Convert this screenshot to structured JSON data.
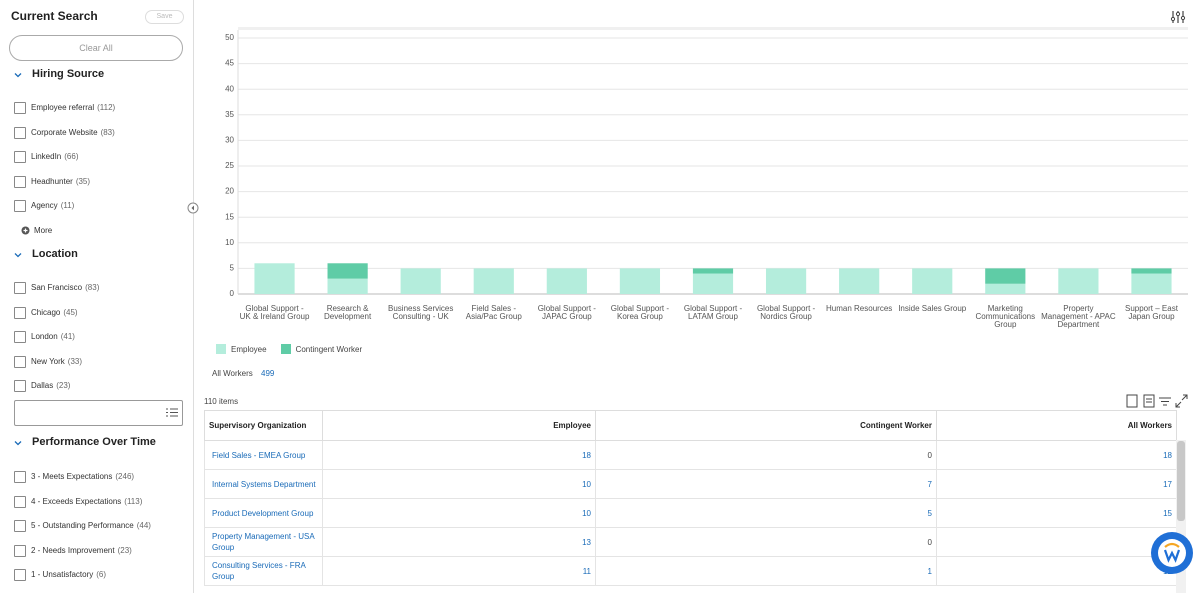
{
  "sidebar": {
    "title": "Current Search",
    "save": "Save",
    "clear_all": "Clear All",
    "sections": [
      {
        "heading": "Hiring Source",
        "items": [
          {
            "label": "Employee referral",
            "count": "(112)"
          },
          {
            "label": "Corporate Website",
            "count": "(83)"
          },
          {
            "label": "LinkedIn",
            "count": "(66)"
          },
          {
            "label": "Headhunter",
            "count": "(35)"
          },
          {
            "label": "Agency",
            "count": "(11)"
          }
        ],
        "more": "More"
      },
      {
        "heading": "Location",
        "items": [
          {
            "label": "San Francisco",
            "count": "(83)"
          },
          {
            "label": "Chicago",
            "count": "(45)"
          },
          {
            "label": "London",
            "count": "(41)"
          },
          {
            "label": "New York",
            "count": "(33)"
          },
          {
            "label": "Dallas",
            "count": "(23)"
          }
        ]
      },
      {
        "heading": "Performance Over Time",
        "items": [
          {
            "label": "3 - Meets Expectations",
            "count": "(246)"
          },
          {
            "label": "4 - Exceeds Expectations",
            "count": "(113)"
          },
          {
            "label": "5 - Outstanding Performance",
            "count": "(44)"
          },
          {
            "label": "2 - Needs Improvement",
            "count": "(23)"
          },
          {
            "label": "1 - Unsatisfactory",
            "count": "(6)"
          }
        ]
      }
    ]
  },
  "chart_data": {
    "type": "bar",
    "stacked": true,
    "categories": [
      "Global Support - UK & Ireland Group",
      "Research & Development",
      "Business Services Consulting - UK",
      "Field Sales - Asia/Pac Group",
      "Global Support - JAPAC Group",
      "Global Support - Korea Group",
      "Global Support - LATAM Group",
      "Global Support - Nordics Group",
      "Human Resources",
      "Inside Sales Group",
      "Marketing Communications Group",
      "Property Management - APAC Department",
      "Support – East Japan Group"
    ],
    "series": [
      {
        "name": "Employee",
        "color": "#b4eddc",
        "values": [
          6,
          3,
          5,
          5,
          5,
          5,
          4,
          5,
          5,
          5,
          2,
          5,
          4
        ]
      },
      {
        "name": "Contingent Worker",
        "color": "#5fcca6",
        "values": [
          0,
          3,
          0,
          0,
          0,
          0,
          1,
          0,
          0,
          0,
          3,
          0,
          1
        ]
      }
    ],
    "ylim": [
      0,
      50
    ],
    "yticks": [
      0,
      5,
      10,
      15,
      20,
      25,
      30,
      35,
      40,
      45,
      50
    ],
    "grid": true
  },
  "summary": {
    "label": "All Workers",
    "value": "499"
  },
  "table": {
    "count": "110 items",
    "headers": [
      "Supervisory Organization",
      "Employee",
      "Contingent Worker",
      "All Workers"
    ],
    "rows": [
      [
        "Field Sales - EMEA Group",
        "18",
        "0",
        "18"
      ],
      [
        "Internal Systems Department",
        "10",
        "7",
        "17"
      ],
      [
        "Product Development Group",
        "10",
        "5",
        "15"
      ],
      [
        "Property Management - USA Group",
        "13",
        "0",
        "13"
      ],
      [
        "Consulting Services - FRA Group",
        "11",
        "1",
        "12"
      ]
    ]
  }
}
